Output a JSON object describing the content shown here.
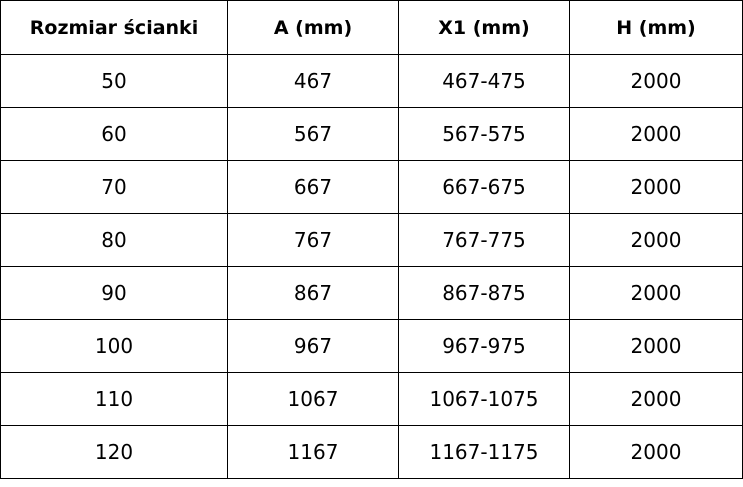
{
  "headers": [
    "Rozmiar ścianki",
    "A (mm)",
    "X1 (mm)",
    "H (mm)"
  ],
  "rows": [
    [
      "50",
      "467",
      "467-475",
      "2000"
    ],
    [
      "60",
      "567",
      "567-575",
      "2000"
    ],
    [
      "70",
      "667",
      "667-675",
      "2000"
    ],
    [
      "80",
      "767",
      "767-775",
      "2000"
    ],
    [
      "90",
      "867",
      "867-875",
      "2000"
    ],
    [
      "100",
      "967",
      "967-975",
      "2000"
    ],
    [
      "110",
      "1067",
      "1067-1075",
      "2000"
    ],
    [
      "120",
      "1167",
      "1167-1175",
      "2000"
    ]
  ]
}
